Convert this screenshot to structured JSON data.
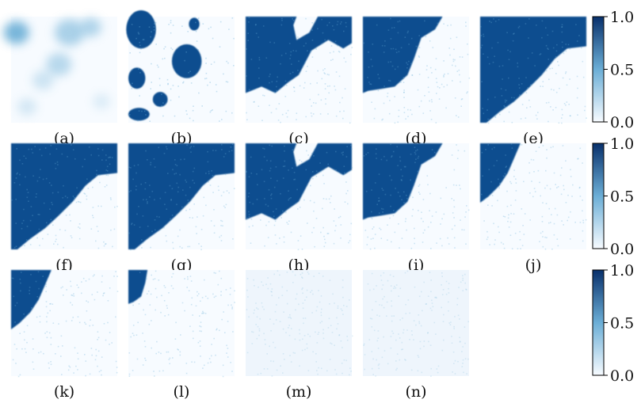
{
  "colormap": {
    "low": "#f7fbff",
    "mid": "#6baed6",
    "high": "#08306b",
    "dense": "#0b4e8f"
  },
  "panels": [
    {
      "label": "(a)",
      "pattern": "blur"
    },
    {
      "label": "(b)",
      "pattern": "patches"
    },
    {
      "label": "(c)",
      "pattern": "top-split"
    },
    {
      "label": "(d)",
      "pattern": "diagonal-left"
    },
    {
      "label": "(e)",
      "pattern": "diagonal-wide"
    },
    {
      "label": "(f)",
      "pattern": "diagonal-wide"
    },
    {
      "label": "(g)",
      "pattern": "diagonal-wide"
    },
    {
      "label": "(h)",
      "pattern": "top-split"
    },
    {
      "label": "(i)",
      "pattern": "diagonal-left"
    },
    {
      "label": "(j)",
      "pattern": "corner-medium"
    },
    {
      "label": "(k)",
      "pattern": "corner-medium"
    },
    {
      "label": "(l)",
      "pattern": "corner-small"
    },
    {
      "label": "(m)",
      "pattern": "faint"
    },
    {
      "label": "(n)",
      "pattern": "faint"
    }
  ],
  "colorbars": [
    {
      "ticks": [
        "1.0",
        "0.5",
        "0.0"
      ]
    },
    {
      "ticks": [
        "1.0",
        "0.5",
        "0.0"
      ]
    },
    {
      "ticks": [
        "1.0",
        "0.5",
        "0.0"
      ]
    }
  ]
}
